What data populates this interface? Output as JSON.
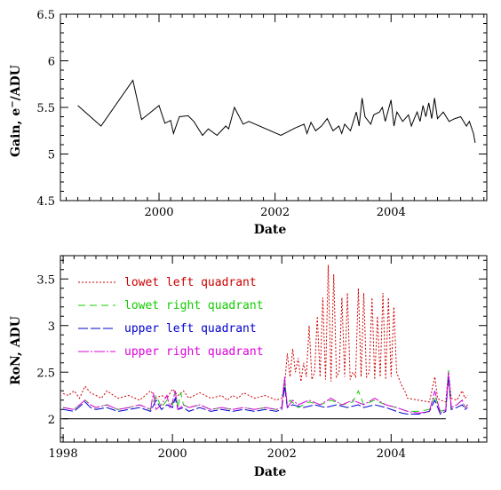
{
  "chart_data": [
    {
      "type": "line",
      "xlabel": "Date",
      "ylabel_main": "Gain, e",
      "ylabel_sup": "−",
      "ylabel_tail": "/ADU",
      "xlim": [
        1998.3,
        2005.65
      ],
      "ylim": [
        4.5,
        6.5
      ],
      "xticks": [
        2000,
        2002,
        2004
      ],
      "xtick_labels": [
        "2000",
        "2002",
        "2004"
      ],
      "yticks": [
        4.5,
        5,
        5.5,
        6,
        6.5
      ],
      "ytick_labels": [
        "4.5",
        "5",
        "5.5",
        "6",
        "6.5"
      ],
      "series": [
        {
          "color": "#000000",
          "dash": "",
          "x": [
            1998.6,
            1999.0,
            1999.55,
            1999.7,
            1999.8,
            2000.0,
            2000.1,
            2000.2,
            2000.25,
            2000.35,
            2000.5,
            2000.6,
            2000.75,
            2000.85,
            2001.0,
            2001.15,
            2001.2,
            2001.3,
            2001.45,
            2001.55,
            2002.1,
            2002.35,
            2002.5,
            2002.55,
            2002.62,
            2002.7,
            2002.8,
            2002.9,
            2003.0,
            2003.1,
            2003.15,
            2003.2,
            2003.3,
            2003.4,
            2003.45,
            2003.5,
            2003.55,
            2003.65,
            2003.7,
            2003.8,
            2003.85,
            2003.9,
            2004.0,
            2004.05,
            2004.1,
            2004.2,
            2004.3,
            2004.35,
            2004.4,
            2004.45,
            2004.5,
            2004.55,
            2004.6,
            2004.65,
            2004.7,
            2004.75,
            2004.8,
            2004.9,
            2005.0,
            2005.1,
            2005.2,
            2005.3,
            2005.35,
            2005.42,
            2005.45
          ],
          "values": [
            5.52,
            5.3,
            5.79,
            5.37,
            5.42,
            5.52,
            5.33,
            5.36,
            5.22,
            5.4,
            5.41,
            5.35,
            5.2,
            5.27,
            5.2,
            5.3,
            5.27,
            5.5,
            5.32,
            5.35,
            5.2,
            5.28,
            5.32,
            5.22,
            5.34,
            5.25,
            5.3,
            5.38,
            5.25,
            5.3,
            5.22,
            5.32,
            5.25,
            5.45,
            5.3,
            5.6,
            5.4,
            5.32,
            5.42,
            5.45,
            5.5,
            5.35,
            5.58,
            5.3,
            5.45,
            5.35,
            5.42,
            5.3,
            5.38,
            5.45,
            5.35,
            5.52,
            5.4,
            5.55,
            5.38,
            5.6,
            5.38,
            5.45,
            5.35,
            5.38,
            5.4,
            5.3,
            5.35,
            5.22,
            5.12
          ]
        }
      ]
    },
    {
      "type": "line",
      "xlabel": "Date",
      "ylabel": "RoN, ADU",
      "xlim": [
        1997.95,
        2005.75
      ],
      "ylim": [
        1.75,
        3.75
      ],
      "xticks": [
        1998,
        2000,
        2002,
        2004
      ],
      "xtick_labels": [
        "1998",
        "2000",
        "2002",
        "2004"
      ],
      "yticks": [
        2,
        2.5,
        3,
        3.5
      ],
      "ytick_labels": [
        "2",
        "2.5",
        "3",
        "3.5"
      ],
      "baseline": 2.0,
      "series": [
        {
          "name": "lowet left quadrant",
          "color": "#cc0000",
          "dash": "2,2",
          "x": [
            1998.0,
            1998.1,
            1998.2,
            1998.3,
            1998.4,
            1998.5,
            1998.6,
            1998.7,
            1998.8,
            1999.0,
            1999.2,
            1999.4,
            1999.5,
            1999.6,
            1999.7,
            1999.8,
            1999.9,
            2000.0,
            2000.1,
            2000.2,
            2000.3,
            2000.4,
            2000.5,
            2000.7,
            2000.9,
            2001.0,
            2001.1,
            2001.2,
            2001.3,
            2001.5,
            2001.7,
            2001.9,
            2002.0,
            2002.05,
            2002.1,
            2002.15,
            2002.2,
            2002.25,
            2002.3,
            2002.35,
            2002.4,
            2002.45,
            2002.5,
            2002.55,
            2002.6,
            2002.65,
            2002.7,
            2002.75,
            2002.8,
            2002.85,
            2002.9,
            2002.95,
            2003.0,
            2003.05,
            2003.1,
            2003.15,
            2003.2,
            2003.25,
            2003.3,
            2003.35,
            2003.4,
            2003.45,
            2003.5,
            2003.55,
            2003.6,
            2003.65,
            2003.7,
            2003.75,
            2003.8,
            2003.85,
            2003.9,
            2003.95,
            2004.0,
            2004.05,
            2004.1,
            2004.15,
            2004.2,
            2004.25,
            2004.3,
            2004.5,
            2004.7,
            2004.8,
            2004.85,
            2004.9,
            2005.0,
            2005.05,
            2005.1,
            2005.2,
            2005.3,
            2005.35,
            2005.4
          ],
          "values": [
            2.27,
            2.25,
            2.3,
            2.22,
            2.35,
            2.28,
            2.25,
            2.22,
            2.3,
            2.22,
            2.25,
            2.2,
            2.25,
            2.3,
            2.22,
            2.25,
            2.22,
            2.32,
            2.25,
            2.3,
            2.22,
            2.25,
            2.28,
            2.22,
            2.25,
            2.2,
            2.25,
            2.22,
            2.28,
            2.22,
            2.25,
            2.2,
            2.22,
            2.35,
            2.7,
            2.45,
            2.75,
            2.5,
            2.65,
            2.4,
            2.6,
            2.45,
            3.0,
            2.42,
            2.5,
            3.1,
            2.45,
            3.3,
            2.42,
            3.65,
            2.4,
            3.55,
            2.45,
            2.5,
            3.3,
            2.45,
            3.35,
            2.42,
            2.5,
            2.45,
            3.4,
            2.45,
            3.35,
            2.45,
            2.5,
            3.3,
            2.42,
            3.1,
            2.45,
            3.35,
            2.42,
            3.3,
            2.45,
            3.2,
            2.5,
            2.42,
            2.35,
            2.3,
            2.22,
            2.2,
            2.18,
            2.45,
            2.22,
            2.2,
            2.18,
            2.5,
            2.22,
            2.2,
            2.3,
            2.22,
            2.25
          ]
        },
        {
          "name": "lowet right quadrant",
          "color": "#11cc00",
          "dash": "8,5",
          "x": [
            1998.0,
            1998.2,
            1998.4,
            1998.5,
            1998.6,
            1998.8,
            1999.0,
            1999.2,
            1999.4,
            1999.6,
            1999.7,
            1999.8,
            1999.9,
            2000.0,
            2000.05,
            2000.1,
            2000.15,
            2000.2,
            2000.3,
            2000.5,
            2000.7,
            2000.9,
            2001.1,
            2001.3,
            2001.5,
            2001.7,
            2001.9,
            2002.0,
            2002.05,
            2002.1,
            2002.15,
            2002.3,
            2002.5,
            2002.7,
            2002.9,
            2003.1,
            2003.3,
            2003.4,
            2003.5,
            2003.7,
            2003.9,
            2004.1,
            2004.2,
            2004.3,
            2004.5,
            2004.7,
            2004.8,
            2004.9,
            2005.0,
            2005.05,
            2005.1,
            2005.2,
            2005.3,
            2005.35,
            2005.4
          ],
          "values": [
            2.12,
            2.1,
            2.2,
            2.15,
            2.12,
            2.15,
            2.1,
            2.12,
            2.15,
            2.1,
            2.25,
            2.12,
            2.2,
            2.15,
            2.3,
            2.12,
            2.28,
            2.15,
            2.12,
            2.15,
            2.1,
            2.12,
            2.1,
            2.12,
            2.1,
            2.12,
            2.1,
            2.12,
            2.42,
            2.15,
            2.2,
            2.12,
            2.18,
            2.15,
            2.2,
            2.15,
            2.18,
            2.3,
            2.15,
            2.2,
            2.15,
            2.12,
            2.1,
            2.08,
            2.08,
            2.1,
            2.25,
            2.08,
            2.1,
            2.52,
            2.12,
            2.15,
            2.2,
            2.12,
            2.15
          ]
        },
        {
          "name": "upper left quadrant",
          "color": "#0000cc",
          "dash": "11,3",
          "x": [
            1998.0,
            1998.2,
            1998.4,
            1998.5,
            1998.6,
            1998.8,
            1999.0,
            1999.2,
            1999.4,
            1999.6,
            1999.7,
            1999.8,
            1999.9,
            2000.0,
            2000.05,
            2000.1,
            2000.2,
            2000.3,
            2000.5,
            2000.7,
            2000.9,
            2001.1,
            2001.3,
            2001.5,
            2001.7,
            2001.9,
            2002.0,
            2002.05,
            2002.1,
            2002.2,
            2002.4,
            2002.6,
            2002.8,
            2003.0,
            2003.2,
            2003.4,
            2003.5,
            2003.7,
            2003.9,
            2004.1,
            2004.2,
            2004.3,
            2004.5,
            2004.7,
            2004.8,
            2004.9,
            2005.0,
            2005.05,
            2005.1,
            2005.2,
            2005.3,
            2005.35,
            2005.4
          ],
          "values": [
            2.1,
            2.08,
            2.18,
            2.12,
            2.1,
            2.12,
            2.08,
            2.1,
            2.12,
            2.08,
            2.2,
            2.1,
            2.15,
            2.12,
            2.22,
            2.1,
            2.12,
            2.08,
            2.12,
            2.08,
            2.1,
            2.08,
            2.1,
            2.08,
            2.1,
            2.08,
            2.1,
            2.35,
            2.12,
            2.15,
            2.12,
            2.15,
            2.12,
            2.15,
            2.12,
            2.15,
            2.12,
            2.15,
            2.12,
            2.08,
            2.06,
            2.05,
            2.05,
            2.08,
            2.2,
            2.05,
            2.08,
            2.45,
            2.1,
            2.12,
            2.15,
            2.1,
            2.12
          ]
        },
        {
          "name": "upper right quadrant",
          "color": "#dd00dd",
          "dash": "12,2,2,2",
          "x": [
            1998.0,
            1998.2,
            1998.4,
            1998.5,
            1998.6,
            1998.8,
            1999.0,
            1999.2,
            1999.4,
            1999.6,
            1999.65,
            1999.7,
            1999.8,
            1999.9,
            1999.95,
            2000.0,
            2000.05,
            2000.1,
            2000.2,
            2000.3,
            2000.5,
            2000.7,
            2000.9,
            2001.1,
            2001.3,
            2001.5,
            2001.7,
            2001.9,
            2002.0,
            2002.05,
            2002.1,
            2002.2,
            2002.3,
            2002.5,
            2002.7,
            2002.9,
            2003.1,
            2003.3,
            2003.5,
            2003.7,
            2003.9,
            2004.1,
            2004.2,
            2004.3,
            2004.5,
            2004.7,
            2004.8,
            2004.9,
            2005.0,
            2005.05,
            2005.1,
            2005.2,
            2005.3,
            2005.35,
            2005.4
          ],
          "values": [
            2.12,
            2.1,
            2.2,
            2.15,
            2.12,
            2.15,
            2.1,
            2.12,
            2.15,
            2.1,
            2.28,
            2.1,
            2.15,
            2.25,
            2.12,
            2.18,
            2.3,
            2.1,
            2.15,
            2.12,
            2.15,
            2.1,
            2.12,
            2.1,
            2.12,
            2.1,
            2.12,
            2.1,
            2.12,
            2.45,
            2.12,
            2.2,
            2.15,
            2.2,
            2.15,
            2.22,
            2.15,
            2.2,
            2.15,
            2.22,
            2.15,
            2.12,
            2.1,
            2.08,
            2.06,
            2.08,
            2.3,
            2.06,
            2.1,
            2.5,
            2.12,
            2.15,
            2.2,
            2.12,
            2.15
          ]
        }
      ]
    }
  ]
}
